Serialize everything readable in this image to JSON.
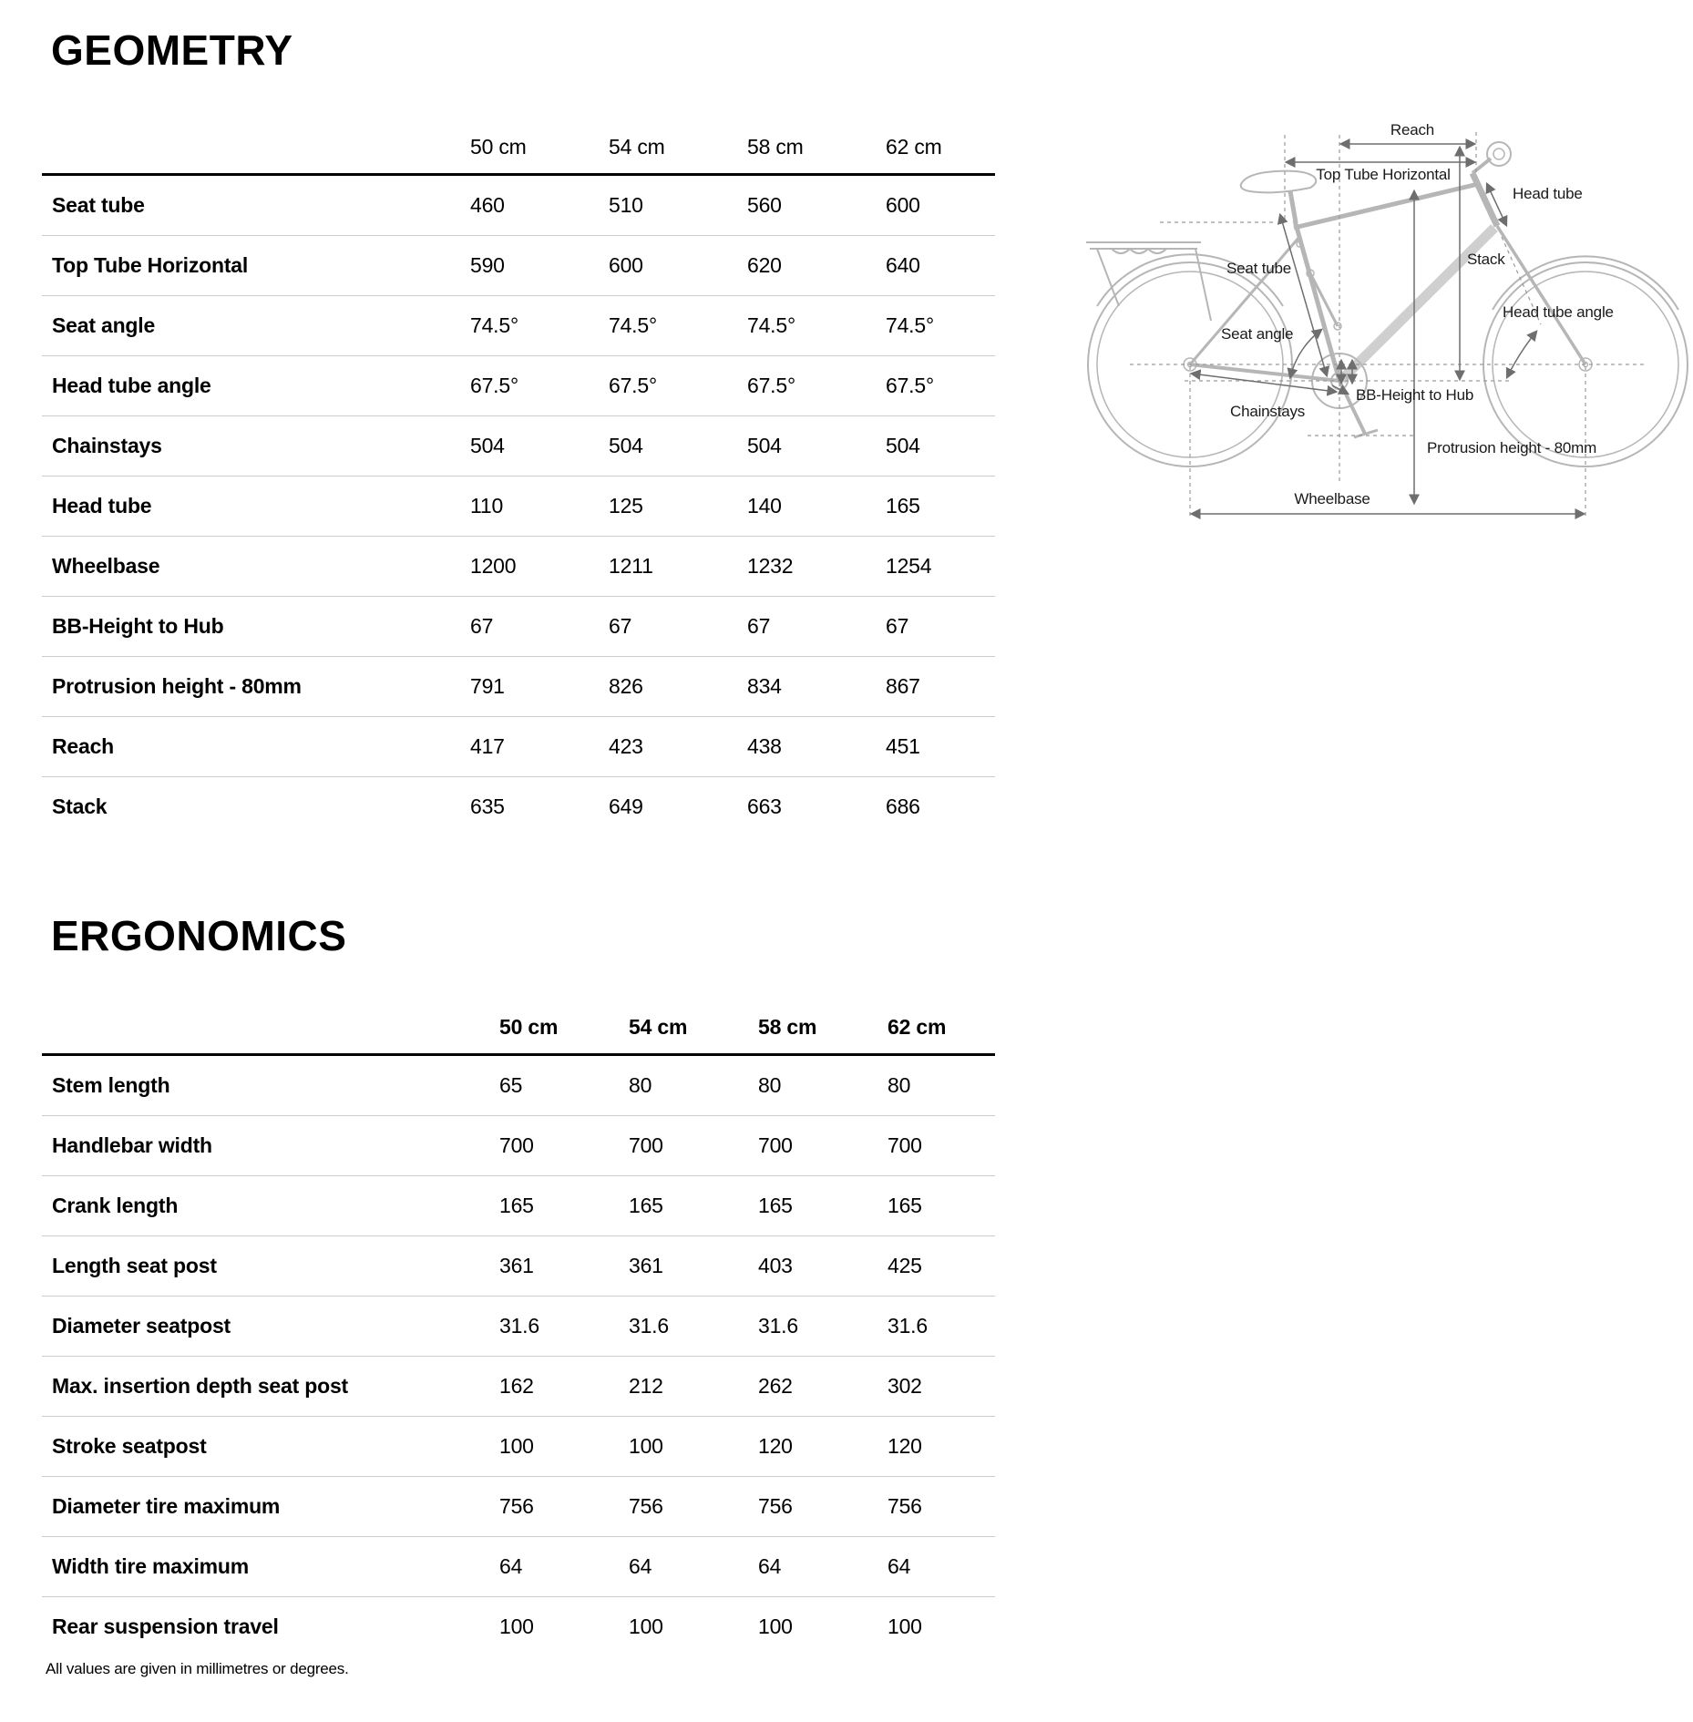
{
  "page": {
    "footnote": "All values are given in millimetres or degrees."
  },
  "geometry": {
    "title": "GEOMETRY",
    "columns": [
      "50 cm",
      "54 cm",
      "58 cm",
      "62 cm"
    ],
    "rows": [
      {
        "label": "Seat tube",
        "values": [
          "460",
          "510",
          "560",
          "600"
        ]
      },
      {
        "label": "Top Tube Horizontal",
        "values": [
          "590",
          "600",
          "620",
          "640"
        ]
      },
      {
        "label": "Seat angle",
        "values": [
          "74.5°",
          "74.5°",
          "74.5°",
          "74.5°"
        ]
      },
      {
        "label": "Head tube angle",
        "values": [
          "67.5°",
          "67.5°",
          "67.5°",
          "67.5°"
        ]
      },
      {
        "label": "Chainstays",
        "values": [
          "504",
          "504",
          "504",
          "504"
        ]
      },
      {
        "label": "Head tube",
        "values": [
          "110",
          "125",
          "140",
          "165"
        ]
      },
      {
        "label": "Wheelbase",
        "values": [
          "1200",
          "1211",
          "1232",
          "1254"
        ]
      },
      {
        "label": "BB-Height to Hub",
        "values": [
          "67",
          "67",
          "67",
          "67"
        ]
      },
      {
        "label": "Protrusion height - 80mm",
        "values": [
          "791",
          "826",
          "834",
          "867"
        ]
      },
      {
        "label": "Reach",
        "values": [
          "417",
          "423",
          "438",
          "451"
        ]
      },
      {
        "label": "Stack",
        "values": [
          "635",
          "649",
          "663",
          "686"
        ]
      }
    ]
  },
  "ergonomics": {
    "title": "ERGONOMICS",
    "columns": [
      "50 cm",
      "54 cm",
      "58 cm",
      "62 cm"
    ],
    "rows": [
      {
        "label": "Stem length",
        "values": [
          "65",
          "80",
          "80",
          "80"
        ]
      },
      {
        "label": "Handlebar width",
        "values": [
          "700",
          "700",
          "700",
          "700"
        ]
      },
      {
        "label": "Crank length",
        "values": [
          "165",
          "165",
          "165",
          "165"
        ]
      },
      {
        "label": "Length seat post",
        "values": [
          "361",
          "361",
          "403",
          "425"
        ]
      },
      {
        "label": "Diameter seatpost",
        "values": [
          "31.6",
          "31.6",
          "31.6",
          "31.6"
        ]
      },
      {
        "label": "Max. insertion depth seat post",
        "values": [
          "162",
          "212",
          "262",
          "302"
        ]
      },
      {
        "label": "Stroke seatpost",
        "values": [
          "100",
          "100",
          "120",
          "120"
        ]
      },
      {
        "label": "Diameter tire maximum",
        "values": [
          "756",
          "756",
          "756",
          "756"
        ]
      },
      {
        "label": "Width tire maximum",
        "values": [
          "64",
          "64",
          "64",
          "64"
        ]
      },
      {
        "label": "Rear suspension travel",
        "values": [
          "100",
          "100",
          "100",
          "100"
        ]
      }
    ]
  },
  "diagram": {
    "labels": {
      "reach": "Reach",
      "top_tube_horizontal": "Top Tube Horizontal",
      "head_tube": "Head tube",
      "stack": "Stack",
      "seat_tube": "Seat tube",
      "head_tube_angle": "Head tube angle",
      "seat_angle": "Seat angle",
      "bb_height_to_hub": "BB-Height to Hub",
      "chainstays": "Chainstays",
      "protrusion_height": "Protrusion height - 80mm",
      "wheelbase": "Wheelbase"
    }
  },
  "colors": {
    "text": "#000000",
    "row_separator": "#cccccc",
    "header_border": "#000000",
    "bike_line": "#b6b6b6",
    "dimension_line": "#6e6e6e"
  }
}
